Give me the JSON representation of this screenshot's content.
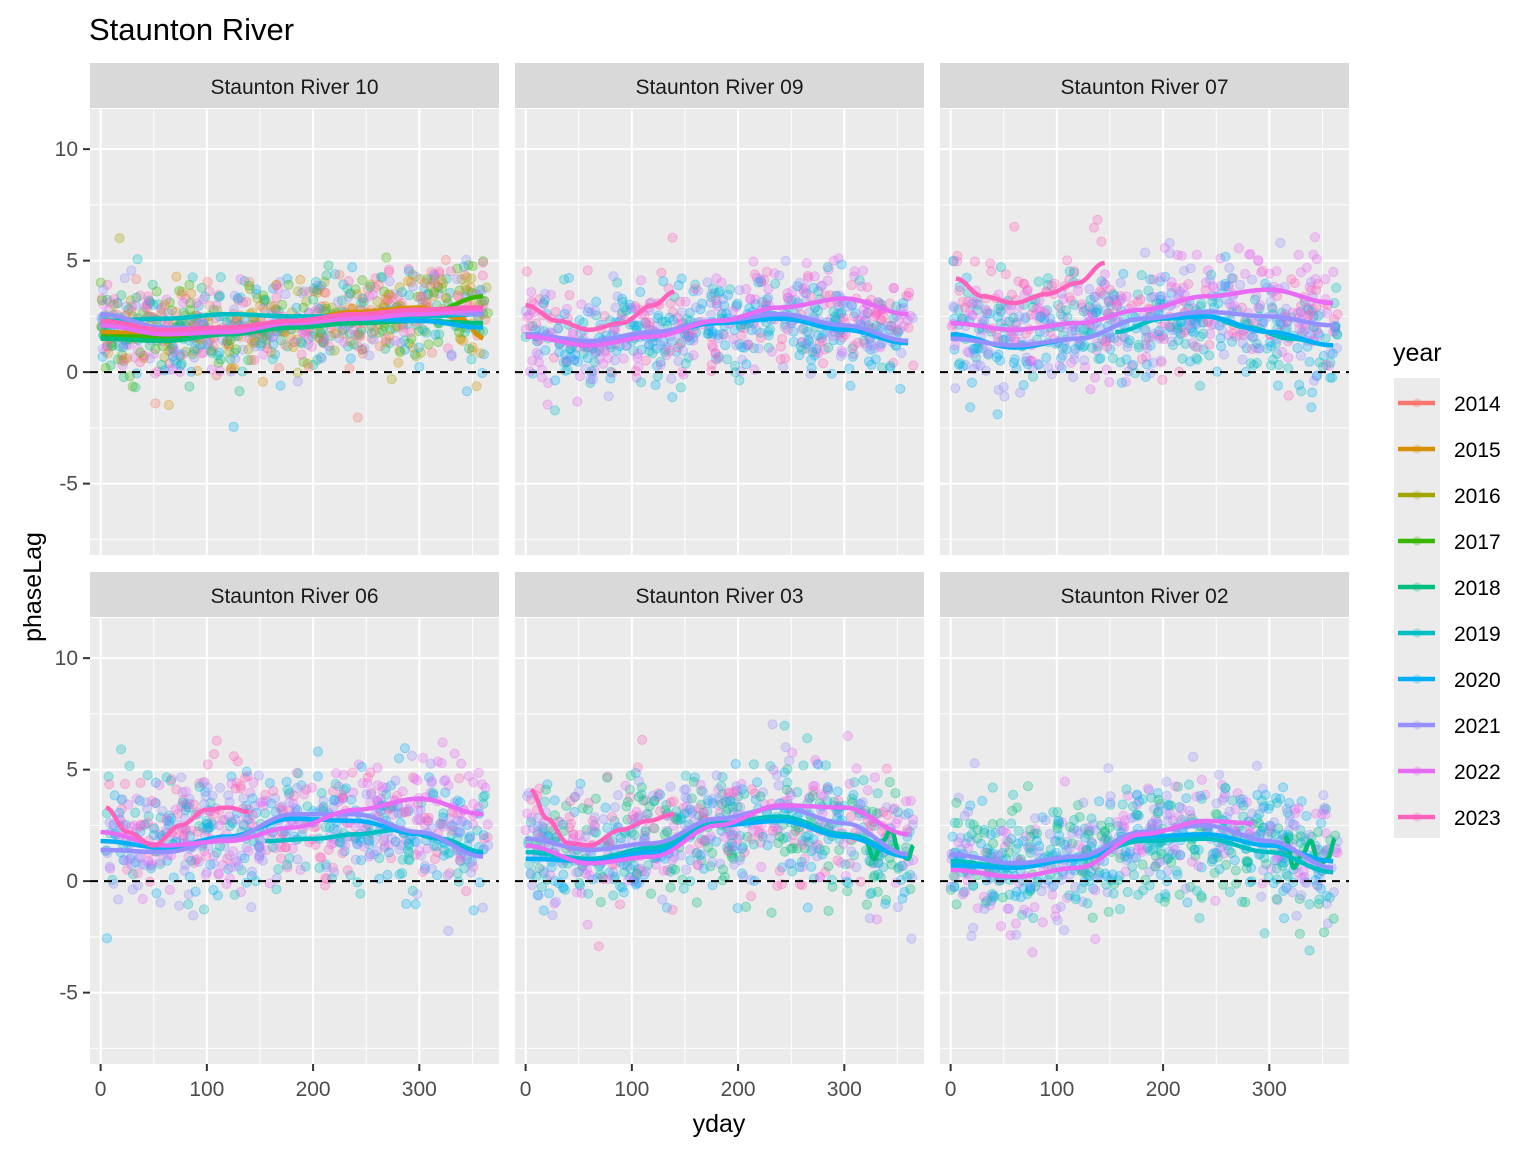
{
  "chart_data": {
    "type": "scatter",
    "title": "Staunton River",
    "xlabel": "yday",
    "ylabel": "phaseLag",
    "xlim": [
      -10,
      375
    ],
    "ylim": [
      -8.2,
      11.8
    ],
    "x_ticks": [
      0,
      100,
      200,
      300
    ],
    "y_ticks": [
      -5,
      0,
      5,
      10
    ],
    "x_tick_labels": [
      "0",
      "100",
      "200",
      "300"
    ],
    "y_tick_labels": [
      "-5",
      "0",
      "5",
      "10"
    ],
    "reference_line": {
      "y": 0,
      "style": "dashed"
    },
    "grid": true,
    "legend": {
      "title": "year",
      "position": "right",
      "entries": [
        {
          "label": "2014",
          "color": "#F8766D"
        },
        {
          "label": "2015",
          "color": "#D89000"
        },
        {
          "label": "2016",
          "color": "#A3A500"
        },
        {
          "label": "2017",
          "color": "#39B600"
        },
        {
          "label": "2018",
          "color": "#00BF7D"
        },
        {
          "label": "2019",
          "color": "#00BFC4"
        },
        {
          "label": "2020",
          "color": "#00B0F6"
        },
        {
          "label": "2021",
          "color": "#9590FF"
        },
        {
          "label": "2022",
          "color": "#E76BF3"
        },
        {
          "label": "2023",
          "color": "#FF62BC"
        }
      ]
    },
    "panels": [
      {
        "label": "Staunton River 10",
        "point_years": [
          "2014",
          "2015",
          "2016",
          "2017",
          "2018",
          "2019",
          "2020",
          "2021",
          "2022",
          "2023"
        ],
        "point_mean": 2.4,
        "point_spread": 1.3,
        "point_count": 900,
        "smooths": [
          {
            "year": "2014",
            "x": [
              0,
              60,
              120,
              180,
              240,
              300,
              360
            ],
            "y": [
              2.2,
              1.9,
              2.0,
              2.3,
              2.6,
              2.8,
              2.9
            ]
          },
          {
            "year": "2015",
            "x": [
              0,
              60,
              120,
              180,
              240,
              300,
              340,
              360
            ],
            "y": [
              1.8,
              1.7,
              1.9,
              2.3,
              2.7,
              2.9,
              2.4,
              1.5
            ]
          },
          {
            "year": "2017",
            "x": [
              0,
              60,
              120,
              180,
              240,
              300,
              360
            ],
            "y": [
              1.6,
              1.6,
              1.9,
              2.0,
              2.2,
              2.5,
              3.4
            ]
          },
          {
            "year": "2018",
            "x": [
              0,
              60,
              120,
              180,
              240,
              300,
              360
            ],
            "y": [
              1.5,
              1.4,
              1.7,
              2.0,
              2.2,
              2.3,
              2.2
            ]
          },
          {
            "year": "2019",
            "x": [
              0,
              60,
              120,
              180,
              240,
              300,
              360
            ],
            "y": [
              2.3,
              2.4,
              2.6,
              2.5,
              2.5,
              2.5,
              2.6
            ]
          },
          {
            "year": "2020",
            "x": [
              0,
              60,
              120,
              180,
              240,
              300,
              360
            ],
            "y": [
              2.1,
              1.7,
              1.8,
              2.2,
              2.4,
              2.3,
              2.0
            ]
          },
          {
            "year": "2021",
            "x": [
              0,
              60,
              120,
              180,
              240,
              300,
              360
            ],
            "y": [
              2.6,
              2.0,
              1.9,
              2.3,
              2.6,
              2.7,
              2.6
            ]
          },
          {
            "year": "2022",
            "x": [
              0,
              60,
              120,
              180,
              240,
              300,
              360
            ],
            "y": [
              2.1,
              1.7,
              1.8,
              2.2,
              2.4,
              2.6,
              2.8
            ]
          },
          {
            "year": "2023",
            "x": [
              0,
              60,
              120,
              180,
              240,
              300,
              360
            ],
            "y": [
              2.3,
              1.9,
              2.0,
              2.3,
              2.6,
              2.8,
              2.9
            ]
          }
        ]
      },
      {
        "label": "Staunton River 09",
        "point_years": [
          "2019",
          "2020",
          "2021",
          "2022",
          "2023"
        ],
        "point_mean": 2.3,
        "point_spread": 1.3,
        "point_count": 700,
        "smooths": [
          {
            "year": "2019",
            "x": [
              0,
              60,
              120,
              180,
              240,
              300,
              360
            ],
            "y": [
              1.6,
              1.3,
              1.7,
              2.3,
              2.4,
              2.0,
              1.4
            ]
          },
          {
            "year": "2020",
            "x": [
              0,
              60,
              120,
              180,
              240,
              300,
              360
            ],
            "y": [
              1.6,
              1.3,
              1.7,
              2.2,
              2.4,
              1.9,
              1.3
            ]
          },
          {
            "year": "2021",
            "x": [
              0,
              60,
              120,
              180,
              240,
              300,
              360
            ],
            "y": [
              1.7,
              1.4,
              1.8,
              2.3,
              2.6,
              2.1,
              1.4
            ]
          },
          {
            "year": "2022",
            "x": [
              0,
              60,
              120,
              180,
              240,
              300,
              360
            ],
            "y": [
              1.6,
              1.2,
              1.6,
              2.3,
              2.9,
              3.3,
              2.6
            ]
          },
          {
            "year": "2023",
            "x": [
              0,
              30,
              60,
              90,
              120,
              140
            ],
            "y": [
              3.0,
              2.3,
              1.9,
              2.2,
              3.0,
              3.6
            ]
          }
        ]
      },
      {
        "label": "Staunton River 07",
        "point_years": [
          "2019",
          "2020",
          "2021",
          "2022",
          "2023"
        ],
        "point_mean": 2.4,
        "point_spread": 1.4,
        "point_count": 750,
        "smooths": [
          {
            "year": "2019",
            "x": [
              155,
              200,
              240,
              280,
              320,
              360
            ],
            "y": [
              1.8,
              2.4,
              2.5,
              2.0,
              1.5,
              1.2
            ]
          },
          {
            "year": "2020",
            "x": [
              0,
              60,
              120,
              180,
              240,
              300,
              360
            ],
            "y": [
              1.7,
              1.1,
              1.5,
              2.4,
              2.5,
              1.8,
              1.2
            ]
          },
          {
            "year": "2021",
            "x": [
              0,
              60,
              120,
              180,
              240,
              300,
              360
            ],
            "y": [
              1.5,
              1.2,
              1.5,
              2.4,
              2.7,
              2.5,
              2.1
            ]
          },
          {
            "year": "2022",
            "x": [
              0,
              60,
              120,
              180,
              240,
              300,
              360
            ],
            "y": [
              2.2,
              1.9,
              2.2,
              2.8,
              3.4,
              3.7,
              3.1
            ]
          },
          {
            "year": "2023",
            "x": [
              5,
              30,
              60,
              90,
              120,
              145
            ],
            "y": [
              4.2,
              3.4,
              3.1,
              3.5,
              4.0,
              4.9
            ]
          }
        ]
      },
      {
        "label": "Staunton River 06",
        "point_years": [
          "2019",
          "2020",
          "2021",
          "2022",
          "2023"
        ],
        "point_mean": 2.3,
        "point_spread": 1.5,
        "point_count": 750,
        "smooths": [
          {
            "year": "2019",
            "x": [
              155,
              200,
              240,
              280,
              320,
              360
            ],
            "y": [
              1.8,
              1.9,
              2.1,
              2.3,
              1.9,
              1.3
            ]
          },
          {
            "year": "2020",
            "x": [
              0,
              60,
              120,
              180,
              240,
              300,
              360
            ],
            "y": [
              1.8,
              1.5,
              2.0,
              2.8,
              2.7,
              2.1,
              1.2
            ]
          },
          {
            "year": "2021",
            "x": [
              0,
              60,
              120,
              180,
              240,
              300,
              360
            ],
            "y": [
              1.4,
              1.3,
              1.9,
              3.0,
              3.0,
              2.2,
              1.1
            ]
          },
          {
            "year": "2022",
            "x": [
              0,
              60,
              120,
              180,
              240,
              300,
              360
            ],
            "y": [
              2.2,
              1.6,
              1.8,
              2.4,
              3.2,
              3.7,
              3.0
            ]
          },
          {
            "year": "2023",
            "x": [
              5,
              25,
              50,
              75,
              100,
              120,
              140
            ],
            "y": [
              3.3,
              2.2,
              1.6,
              2.5,
              3.2,
              3.3,
              3.1
            ]
          }
        ]
      },
      {
        "label": "Staunton River 03",
        "point_years": [
          "2018",
          "2019",
          "2020",
          "2021",
          "2022",
          "2023"
        ],
        "point_mean": 2.2,
        "point_spread": 1.6,
        "point_count": 800,
        "smooths": [
          {
            "year": "2018",
            "x": [
              320,
              328,
              336,
              344,
              352,
              360,
              365
            ],
            "y": [
              1.8,
              1.0,
              1.8,
              2.3,
              1.2,
              1.0,
              1.6
            ]
          },
          {
            "year": "2019",
            "x": [
              0,
              60,
              120,
              180,
              240,
              300,
              360
            ],
            "y": [
              1.3,
              1.0,
              1.5,
              2.6,
              2.9,
              2.1,
              1.2
            ]
          },
          {
            "year": "2020",
            "x": [
              0,
              60,
              120,
              180,
              240,
              300,
              360
            ],
            "y": [
              1.0,
              0.9,
              1.3,
              2.5,
              2.7,
              2.0,
              1.1
            ]
          },
          {
            "year": "2021",
            "x": [
              0,
              60,
              120,
              180,
              240,
              300,
              360
            ],
            "y": [
              1.9,
              1.4,
              1.7,
              2.8,
              3.3,
              2.6,
              1.2
            ]
          },
          {
            "year": "2022",
            "x": [
              0,
              60,
              120,
              180,
              240,
              300,
              360
            ],
            "y": [
              1.6,
              0.8,
              1.1,
              2.5,
              3.4,
              3.3,
              2.1
            ]
          },
          {
            "year": "2023",
            "x": [
              5,
              20,
              40,
              60,
              90,
              115,
              140
            ],
            "y": [
              4.1,
              2.8,
              1.7,
              1.6,
              2.3,
              2.7,
              3.0
            ]
          }
        ]
      },
      {
        "label": "Staunton River 02",
        "point_years": [
          "2018",
          "2019",
          "2020",
          "2021",
          "2022"
        ],
        "point_mean": 1.6,
        "point_spread": 1.5,
        "point_count": 800,
        "smooths": [
          {
            "year": "2018",
            "x": [
              315,
              323,
              331,
              339,
              347,
              355,
              362
            ],
            "y": [
              2.0,
              0.6,
              1.2,
              1.8,
              0.7,
              1.0,
              1.9
            ]
          },
          {
            "year": "2019",
            "x": [
              0,
              60,
              120,
              180,
              240,
              300,
              360
            ],
            "y": [
              0.9,
              0.6,
              1.0,
              1.8,
              1.9,
              1.3,
              0.4
            ]
          },
          {
            "year": "2020",
            "x": [
              0,
              60,
              120,
              180,
              240,
              300,
              360
            ],
            "y": [
              0.7,
              0.6,
              1.0,
              2.0,
              2.1,
              1.6,
              0.9
            ]
          },
          {
            "year": "2021",
            "x": [
              0,
              60,
              120,
              180,
              240,
              300,
              360
            ],
            "y": [
              1.2,
              0.8,
              1.1,
              2.2,
              2.5,
              1.8,
              0.6
            ]
          },
          {
            "year": "2022",
            "x": [
              0,
              60,
              120,
              180,
              240,
              285
            ],
            "y": [
              0.5,
              0.2,
              0.6,
              2.1,
              2.7,
              2.6
            ]
          }
        ]
      }
    ]
  }
}
